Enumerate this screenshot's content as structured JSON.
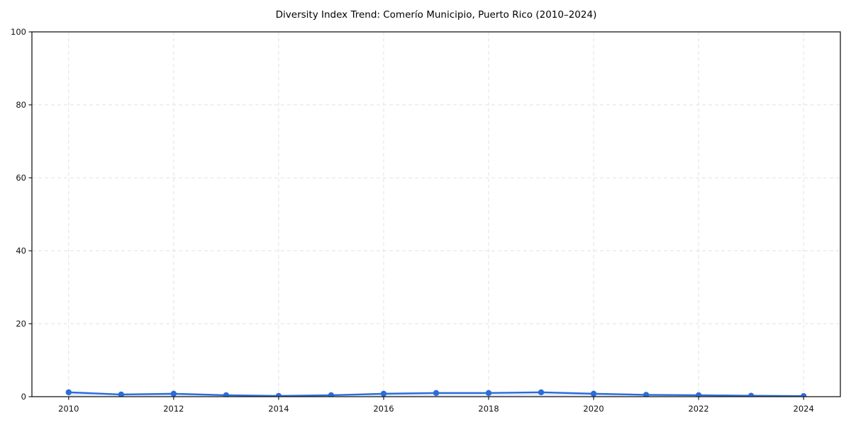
{
  "title": "Diversity Index Trend: Comerío Municipio, Puerto Rico (2010–2024)",
  "chart_data": {
    "type": "line",
    "title": "Diversity Index Trend: Comerío Municipio, Puerto Rico (2010–2024)",
    "xlabel": "",
    "ylabel": "",
    "x": [
      2010,
      2011,
      2012,
      2013,
      2014,
      2015,
      2016,
      2017,
      2018,
      2019,
      2020,
      2021,
      2022,
      2023,
      2024
    ],
    "series": [
      {
        "name": "Diversity Index",
        "values": [
          1.2,
          0.6,
          0.8,
          0.4,
          0.2,
          0.4,
          0.8,
          1.0,
          1.0,
          1.2,
          0.8,
          0.5,
          0.4,
          0.25,
          0.15
        ]
      }
    ],
    "ylim": [
      0,
      100
    ],
    "xlim": [
      2009.3,
      2024.7
    ],
    "yticks": [
      0,
      20,
      40,
      60,
      80,
      100
    ],
    "xticks": [
      2010,
      2012,
      2014,
      2016,
      2018,
      2020,
      2022,
      2024
    ],
    "grid": true,
    "grid_style": "dashed",
    "legend": false,
    "marker": "circle",
    "colors": {
      "line": "#2b6cd9",
      "marker": "#2b6cd9",
      "fill": "rgba(43, 108, 217, 0.12)",
      "grid": "#e2e2e2",
      "spine": "#1a1a1a",
      "tick_text": "#111111",
      "background": "#ffffff"
    }
  }
}
